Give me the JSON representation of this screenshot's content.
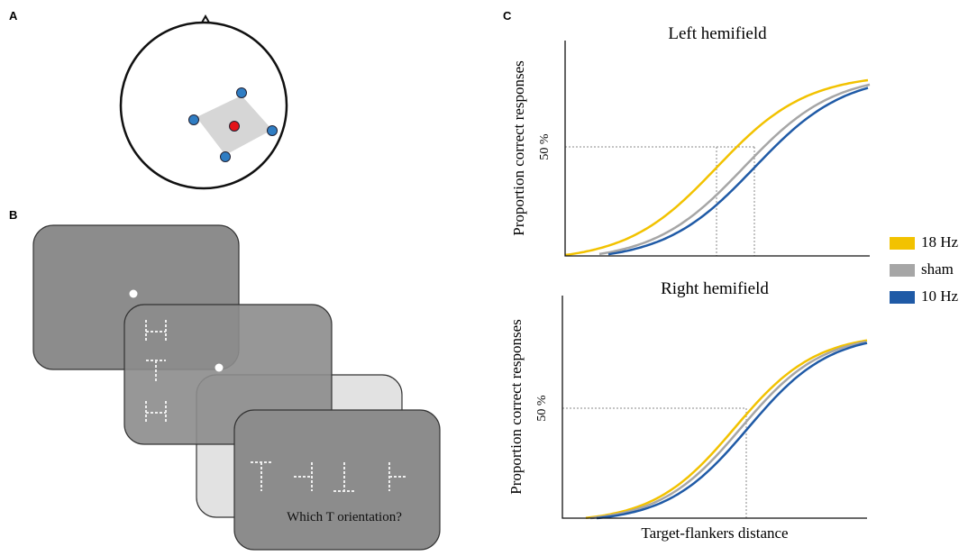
{
  "panels": {
    "a": {
      "label": "A"
    },
    "b": {
      "label": "B",
      "question": "Which T orientation?"
    },
    "c": {
      "label": "C",
      "plots": [
        {
          "title": "Left hemifield",
          "ylabel": "Proportion correct responses",
          "marker": "50 %"
        },
        {
          "title": "Right hemifield",
          "ylabel": "Proportion correct responses",
          "marker": "50 %",
          "xlabel": "Target-flankers distance"
        }
      ],
      "legend": [
        {
          "name": "18 Hz",
          "color": "#f2c200"
        },
        {
          "name": "sham",
          "color": "#a6a6a6"
        },
        {
          "name": "10 Hz",
          "color": "#1f5aa6"
        }
      ]
    }
  }
}
